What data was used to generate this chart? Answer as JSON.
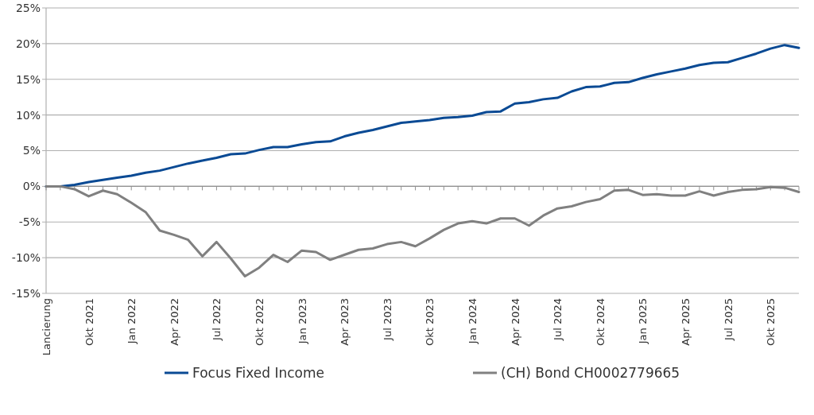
{
  "chart_data": {
    "type": "line",
    "categories": [
      "Lancierung",
      null,
      null,
      "Okt 2021",
      null,
      null,
      "Jan 2022",
      null,
      null,
      "Apr 2022",
      null,
      null,
      "Jul 2022",
      null,
      null,
      "Okt 2022",
      null,
      null,
      "Jan 2023",
      null,
      null,
      "Apr 2023",
      null,
      null,
      "Jul 2023",
      null,
      null,
      "Okt 2023",
      null,
      null,
      "Jan 2024",
      null,
      null,
      "Apr 2024",
      null,
      null,
      "Jul 2024",
      null,
      null,
      "Okt 2024",
      null,
      null,
      "Jan 2025",
      null,
      null,
      "Apr 2025",
      null,
      null,
      "Jul 2025",
      null,
      null,
      "Okt 2025",
      null,
      null
    ],
    "series": [
      {
        "name": "Focus Fixed Income",
        "color": "#0a4a94",
        "values": [
          0,
          0,
          0.2,
          0.6,
          0.9,
          1.2,
          1.5,
          1.9,
          2.2,
          2.7,
          3.2,
          3.6,
          4.0,
          4.5,
          4.6,
          5.1,
          5.5,
          5.5,
          5.9,
          6.2,
          6.3,
          7.0,
          7.5,
          7.9,
          8.4,
          8.9,
          9.1,
          9.3,
          9.6,
          9.7,
          9.9,
          10.4,
          10.5,
          11.6,
          11.8,
          12.2,
          12.4,
          13.3,
          13.9,
          14.0,
          14.5,
          14.6,
          15.2,
          15.7,
          16.1,
          16.5,
          17.0,
          17.3,
          17.4,
          18.0,
          18.6,
          19.3,
          19.8,
          19.4
        ]
      },
      {
        "name": "(CH) Bond CH0002779665",
        "color": "#808080",
        "values": [
          0,
          0,
          -0.4,
          -1.4,
          -0.6,
          -1.1,
          -2.3,
          -3.6,
          -6.2,
          -6.8,
          -7.5,
          -9.8,
          -7.8,
          -10.1,
          -12.6,
          -11.4,
          -9.6,
          -10.6,
          -9.0,
          -9.2,
          -10.3,
          -9.6,
          -8.9,
          -8.7,
          -8.1,
          -7.8,
          -8.4,
          -7.3,
          -6.1,
          -5.2,
          -4.9,
          -5.2,
          -4.5,
          -4.5,
          -5.5,
          -4.1,
          -3.1,
          -2.8,
          -2.2,
          -1.8,
          -0.6,
          -0.5,
          -1.2,
          -1.1,
          -1.3,
          -1.3,
          -0.7,
          -1.3,
          -0.8,
          -0.5,
          -0.4,
          -0.1,
          -0.2,
          -0.8
        ]
      }
    ],
    "ylim": [
      -15,
      25
    ],
    "yticks": [
      {
        "value": -15,
        "label": "-15%"
      },
      {
        "value": -10,
        "label": "-10%"
      },
      {
        "value": -5,
        "label": "-5%"
      },
      {
        "value": 0,
        "label": "0%"
      },
      {
        "value": 5,
        "label": "5%"
      },
      {
        "value": 10,
        "label": "10%"
      },
      {
        "value": 15,
        "label": "15%"
      },
      {
        "value": 20,
        "label": "20%"
      },
      {
        "value": 25,
        "label": "25%"
      }
    ],
    "grid": "y",
    "legend": "bottom",
    "marker": "none",
    "line_style": "solid"
  }
}
